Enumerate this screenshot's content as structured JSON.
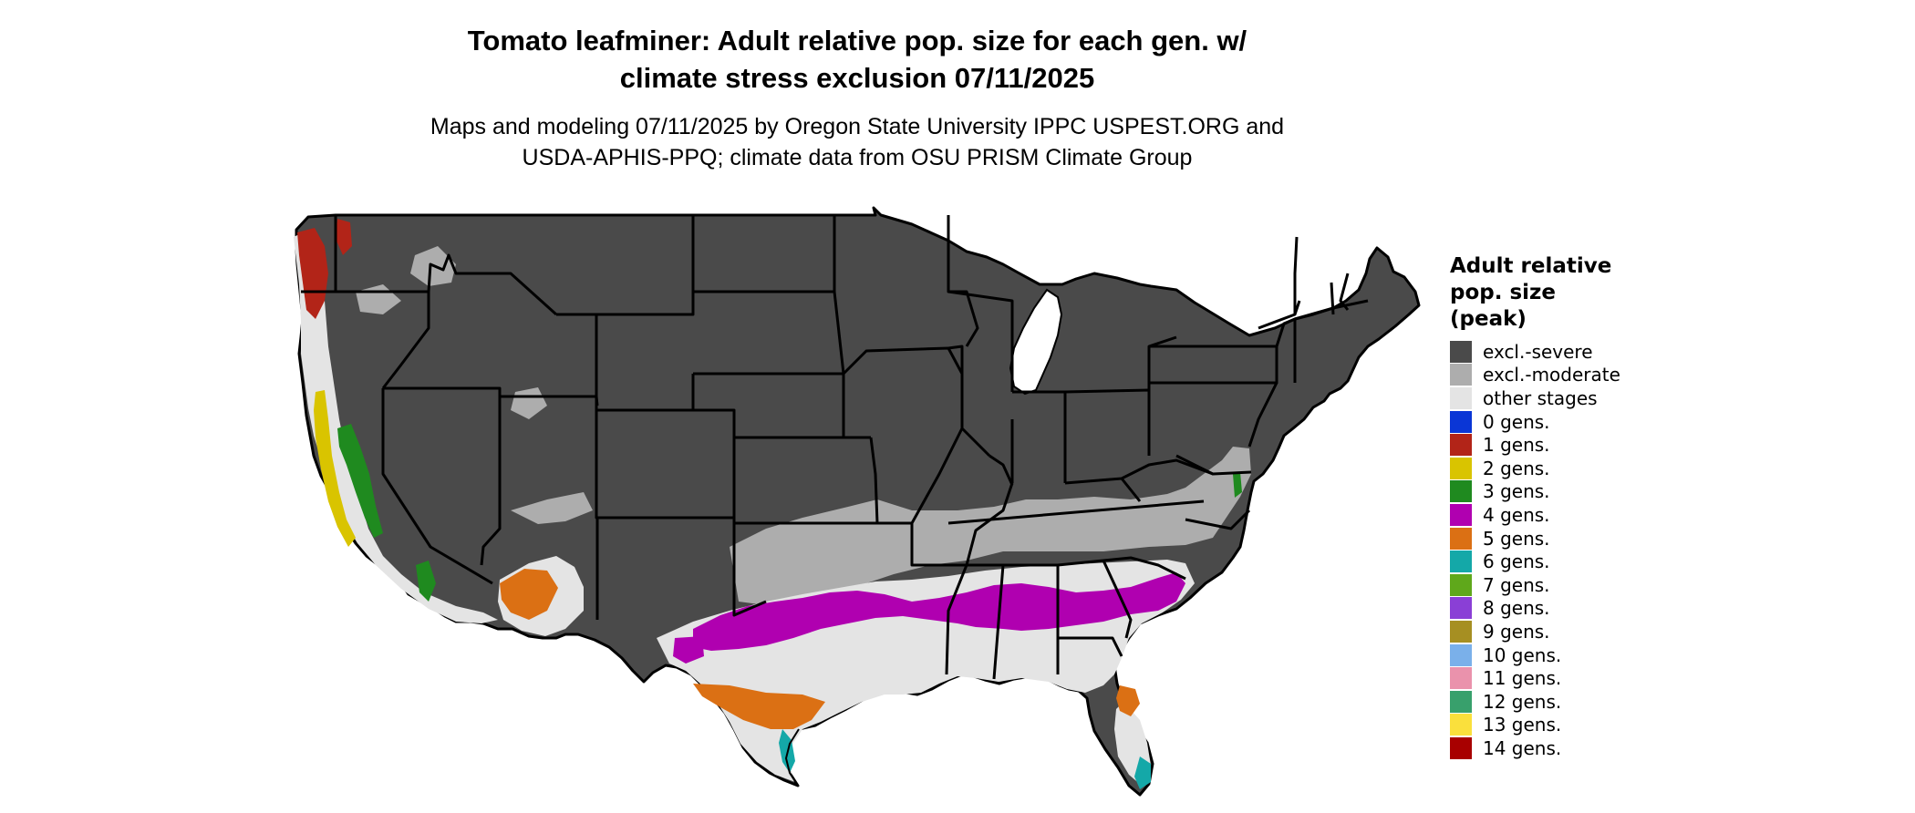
{
  "title_line1": "Tomato leafminer: Adult relative pop. size for each gen. w/",
  "title_line2": "climate stress exclusion 07/11/2025",
  "subtitle_line1": "Maps and modeling 07/11/2025 by Oregon State University IPPC USPEST.ORG and",
  "subtitle_line2": "USDA-APHIS-PPQ; climate data from OSU PRISM Climate Group",
  "legend": {
    "title_lines": [
      "Adult relative",
      "pop. size",
      "(peak)"
    ],
    "items": [
      {
        "label": "excl.-severe",
        "color": "#4a4a4a"
      },
      {
        "label": "excl.-moderate",
        "color": "#adadad"
      },
      {
        "label": "other stages",
        "color": "#e4e4e4"
      },
      {
        "label": "0 gens.",
        "color": "#0a36d6"
      },
      {
        "label": "1 gens.",
        "color": "#b22418"
      },
      {
        "label": "2 gens.",
        "color": "#d9c400"
      },
      {
        "label": "3 gens.",
        "color": "#1f8a1f"
      },
      {
        "label": "4 gens.",
        "color": "#b000b0"
      },
      {
        "label": "5 gens.",
        "color": "#db7014"
      },
      {
        "label": "6 gens.",
        "color": "#14a8a8"
      },
      {
        "label": "7 gens.",
        "color": "#5fa81b"
      },
      {
        "label": "8 gens.",
        "color": "#8a3fd6"
      },
      {
        "label": "9 gens.",
        "color": "#a68f22"
      },
      {
        "label": "10 gens.",
        "color": "#7ab0ea"
      },
      {
        "label": "11 gens.",
        "color": "#ea92ac"
      },
      {
        "label": "12 gens.",
        "color": "#38a06c"
      },
      {
        "label": "13 gens.",
        "color": "#fae03c"
      },
      {
        "label": "14 gens.",
        "color": "#a80000"
      }
    ]
  }
}
